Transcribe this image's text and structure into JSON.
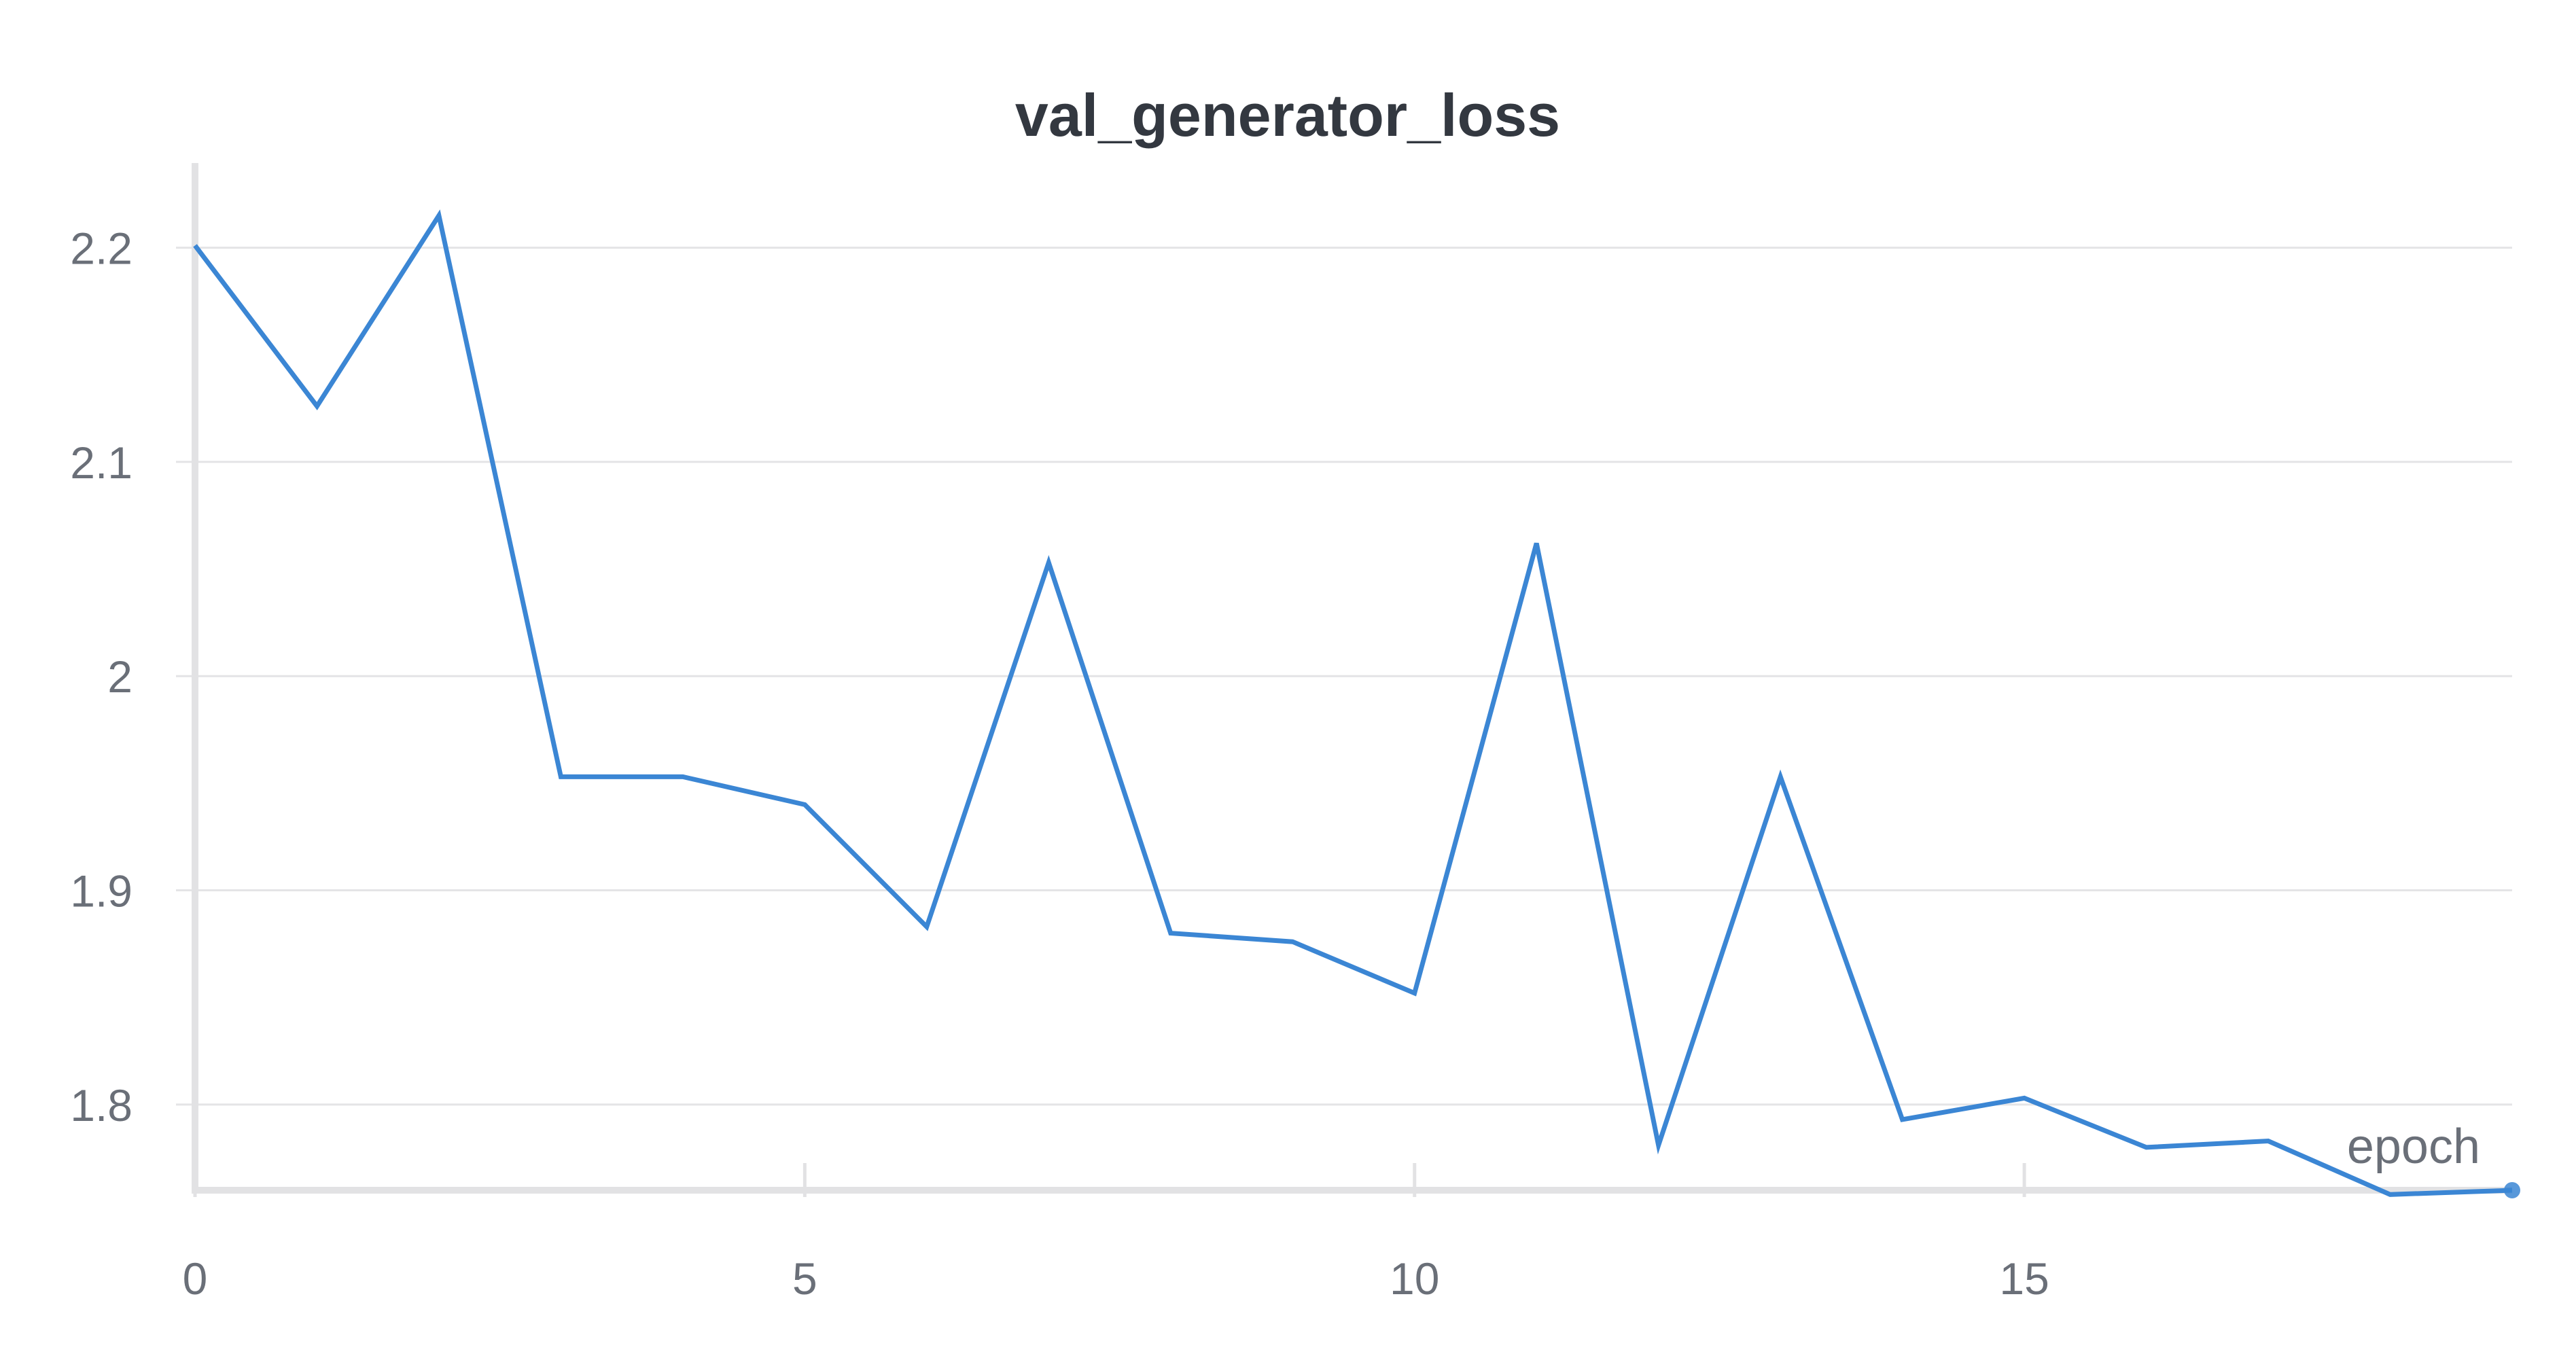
{
  "chart_data": {
    "type": "line",
    "title": "val_generator_loss",
    "xlabel": "epoch",
    "ylabel": "",
    "x_ticks": [
      0,
      5,
      10,
      15
    ],
    "y_ticks": [
      1.8,
      1.9,
      2,
      2.1,
      2.2
    ],
    "y_tick_labels": [
      "1.8",
      "1.9",
      "2",
      "2.1",
      "2.2"
    ],
    "xlim": [
      0,
      19
    ],
    "ylim": [
      1.76,
      2.23
    ],
    "grid": true,
    "series": [
      {
        "color": "#3b86d4",
        "x": [
          0,
          1,
          2,
          3,
          4,
          5,
          6,
          7,
          8,
          9,
          10,
          11,
          12,
          13,
          14,
          15,
          16,
          17,
          18,
          19
        ],
        "y": [
          2.201,
          2.126,
          2.215,
          1.953,
          1.953,
          1.94,
          1.883,
          2.053,
          1.88,
          1.876,
          1.852,
          2.062,
          1.781,
          1.953,
          1.793,
          1.803,
          1.78,
          1.783,
          1.758,
          1.76
        ]
      }
    ]
  }
}
